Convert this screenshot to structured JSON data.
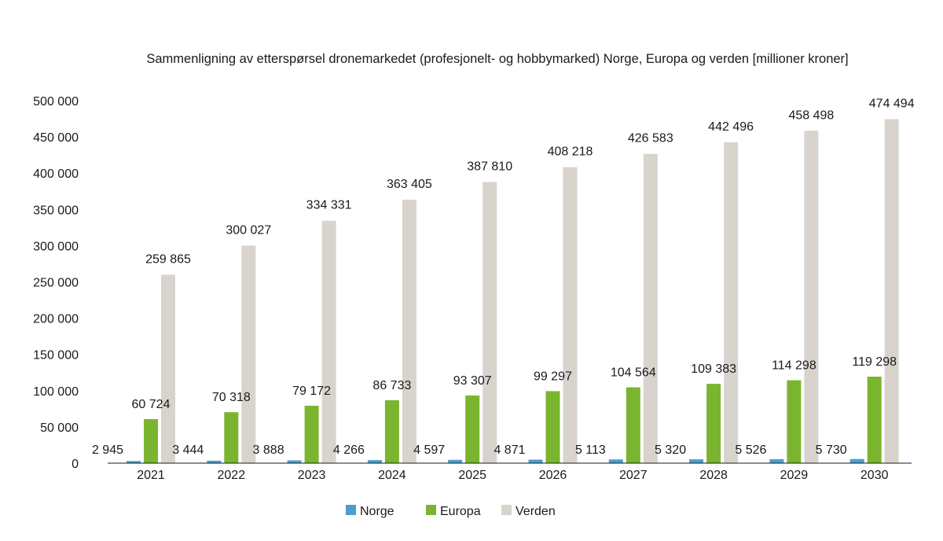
{
  "chart_data": {
    "type": "bar",
    "title": "Sammenligning av etterspørsel dronemarkedet (profesjonelt- og hobbymarked) Norge, Europa og verden [millioner kroner]",
    "xlabel": "",
    "ylabel": "",
    "ylim": [
      0,
      500000
    ],
    "yticks": [
      0,
      50000,
      100000,
      150000,
      200000,
      250000,
      300000,
      350000,
      400000,
      450000,
      500000
    ],
    "ytick_labels": [
      "0",
      "50 000",
      "100 000",
      "150 000",
      "200 000",
      "250 000",
      "300 000",
      "350 000",
      "400 000",
      "450 000",
      "500 000"
    ],
    "grid": false,
    "legend_position": "bottom",
    "categories": [
      "2021",
      "2022",
      "2023",
      "2024",
      "2025",
      "2026",
      "2027",
      "2028",
      "2029",
      "2030"
    ],
    "series": [
      {
        "name": "Norge",
        "color": "#4a9fd0",
        "values": [
          2945,
          3444,
          3888,
          4266,
          4597,
          4871,
          5113,
          5320,
          5526,
          5730
        ],
        "labels": [
          "2 945",
          "3 444",
          "3 888",
          "4 266",
          "4 597",
          "4 871",
          "5 113",
          "5 320",
          "5 526",
          "5 730"
        ]
      },
      {
        "name": "Europa",
        "color": "#7ab52f",
        "values": [
          60724,
          70318,
          79172,
          86733,
          93307,
          99297,
          104564,
          109383,
          114298,
          119298
        ],
        "labels": [
          "60 724",
          "70 318",
          "79 172",
          "86 733",
          "93 307",
          "99 297",
          "104 564",
          "109 383",
          "114 298",
          "119 298"
        ]
      },
      {
        "name": "Verden",
        "color": "#d8d3cd",
        "values": [
          259865,
          300027,
          334331,
          363405,
          387810,
          408218,
          426583,
          442496,
          458498,
          474494
        ],
        "labels": [
          "259 865",
          "300 027",
          "334 331",
          "363 405",
          "387 810",
          "408 218",
          "426 583",
          "442 496",
          "458 498",
          "474 494"
        ]
      }
    ]
  }
}
